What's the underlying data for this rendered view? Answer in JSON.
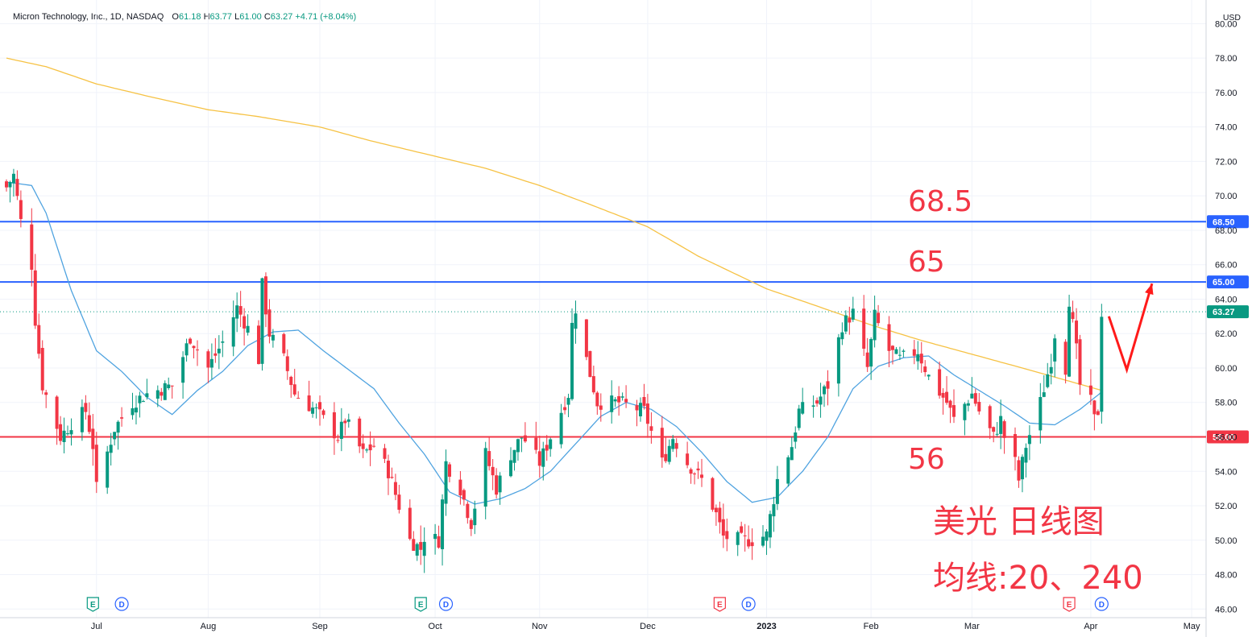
{
  "header": {
    "symbol": "Micron Technology, Inc., 1D, NASDAQ",
    "o_label": "O",
    "o_value": "61.18",
    "h_label": "H",
    "h_value": "63.77",
    "l_label": "L",
    "l_value": "61.00",
    "c_label": "C",
    "c_value": "63.27",
    "change": "+4.71 (+8.04%)"
  },
  "currency": "USD",
  "annotations": {
    "level_high": "68.5",
    "level_mid": "65",
    "level_low": "56",
    "title": "美光 日线图",
    "subtitle": "均线:20、240"
  },
  "colors": {
    "up": "#089981",
    "down": "#f23645",
    "ma20": "#4fa3e0",
    "ma240": "#f6c244",
    "level_blue": "#2962ff",
    "level_red": "#f23645",
    "annotation": "#f23645"
  },
  "chart_data": {
    "type": "candlestick",
    "ylim": [
      45.5,
      81.0
    ],
    "y_ticks": [
      46,
      48,
      50,
      52,
      54,
      56,
      58,
      60,
      62,
      64,
      66,
      68,
      70,
      72,
      74,
      76,
      78,
      80
    ],
    "y_tick_labels": [
      "46.00",
      "48.00",
      "50.00",
      "52.00",
      "54.00",
      "56.00",
      "58.00",
      "60.00",
      "62.00",
      "64.00",
      "66.00",
      "68.00",
      "70.00",
      "72.00",
      "74.00",
      "76.00",
      "78.00",
      "80.00"
    ],
    "x_tick_labels": [
      "Jul",
      "Aug",
      "Sep",
      "Oct",
      "Nov",
      "Dec",
      "2023",
      "Feb",
      "Mar",
      "Apr",
      "May"
    ],
    "x_range": [
      "2022-06-06",
      "2023-05-05"
    ],
    "last_price": "63.27",
    "horizontal_lines": [
      {
        "value": 68.5,
        "label": "68.50",
        "color": "#2962ff"
      },
      {
        "value": 65.0,
        "label": "65.00",
        "color": "#2962ff"
      },
      {
        "value": 56.0,
        "label": "56.00",
        "color": "#f23645"
      }
    ],
    "ma20_anchors": [
      [
        "2022-06-06",
        70.8
      ],
      [
        "2022-06-13",
        70.6
      ],
      [
        "2022-06-17",
        69.0
      ],
      [
        "2022-06-24",
        64.5
      ],
      [
        "2022-07-01",
        61.0
      ],
      [
        "2022-07-08",
        59.8
      ],
      [
        "2022-07-15",
        58.3
      ],
      [
        "2022-07-22",
        57.3
      ],
      [
        "2022-07-29",
        58.7
      ],
      [
        "2022-08-05",
        59.8
      ],
      [
        "2022-08-12",
        61.3
      ],
      [
        "2022-08-19",
        62.1
      ],
      [
        "2022-08-26",
        62.2
      ],
      [
        "2022-09-02",
        61.0
      ],
      [
        "2022-09-09",
        59.9
      ],
      [
        "2022-09-16",
        58.8
      ],
      [
        "2022-09-23",
        56.8
      ],
      [
        "2022-09-30",
        55.0
      ],
      [
        "2022-10-07",
        52.8
      ],
      [
        "2022-10-14",
        52.1
      ],
      [
        "2022-10-21",
        52.4
      ],
      [
        "2022-10-28",
        53.0
      ],
      [
        "2022-11-04",
        54.0
      ],
      [
        "2022-11-11",
        55.6
      ],
      [
        "2022-11-18",
        57.2
      ],
      [
        "2022-11-25",
        58.0
      ],
      [
        "2022-12-02",
        57.6
      ],
      [
        "2022-12-09",
        56.6
      ],
      [
        "2022-12-16",
        55.1
      ],
      [
        "2022-12-23",
        53.4
      ],
      [
        "2022-12-30",
        52.2
      ],
      [
        "2023-01-06",
        52.5
      ],
      [
        "2023-01-13",
        54.0
      ],
      [
        "2023-01-20",
        56.0
      ],
      [
        "2023-01-27",
        58.8
      ],
      [
        "2023-02-03",
        60.1
      ],
      [
        "2023-02-10",
        60.6
      ],
      [
        "2023-02-17",
        60.7
      ],
      [
        "2023-02-24",
        59.6
      ],
      [
        "2023-03-03",
        58.7
      ],
      [
        "2023-03-10",
        57.8
      ],
      [
        "2023-03-17",
        56.8
      ],
      [
        "2023-03-24",
        56.7
      ],
      [
        "2023-03-31",
        57.6
      ],
      [
        "2023-04-06",
        58.6
      ]
    ],
    "ma240_anchors": [
      [
        "2022-06-06",
        78.0
      ],
      [
        "2022-06-17",
        77.5
      ],
      [
        "2022-07-01",
        76.5
      ],
      [
        "2022-07-15",
        75.8
      ],
      [
        "2022-08-01",
        75.0
      ],
      [
        "2022-08-15",
        74.6
      ],
      [
        "2022-09-01",
        74.0
      ],
      [
        "2022-09-15",
        73.2
      ],
      [
        "2022-10-03",
        72.3
      ],
      [
        "2022-10-17",
        71.6
      ],
      [
        "2022-11-01",
        70.6
      ],
      [
        "2022-11-15",
        69.5
      ],
      [
        "2022-12-01",
        68.2
      ],
      [
        "2022-12-15",
        66.5
      ],
      [
        "2023-01-03",
        64.6
      ],
      [
        "2023-01-17",
        63.6
      ],
      [
        "2023-02-01",
        62.5
      ],
      [
        "2023-02-15",
        61.6
      ],
      [
        "2023-03-01",
        60.8
      ],
      [
        "2023-03-15",
        60.0
      ],
      [
        "2023-04-01",
        59.0
      ],
      [
        "2023-04-06",
        58.7
      ]
    ],
    "close_anchors": [
      [
        "2022-06-06",
        70.5
      ],
      [
        "2022-06-08",
        71.2
      ],
      [
        "2022-06-10",
        68.5
      ],
      [
        "2022-06-13",
        66.0
      ],
      [
        "2022-06-14",
        62.8
      ],
      [
        "2022-06-16",
        59.0
      ],
      [
        "2022-06-21",
        56.0
      ],
      [
        "2022-06-24",
        56.8
      ],
      [
        "2022-06-28",
        57.5
      ],
      [
        "2022-06-30",
        55.5
      ],
      [
        "2022-07-01",
        53.0
      ],
      [
        "2022-07-06",
        56.5
      ],
      [
        "2022-07-11",
        58.0
      ],
      [
        "2022-07-15",
        58.5
      ],
      [
        "2022-07-22",
        59.0
      ],
      [
        "2022-07-27",
        61.8
      ],
      [
        "2022-08-01",
        60.0
      ],
      [
        "2022-08-05",
        61.5
      ],
      [
        "2022-08-09",
        63.5
      ],
      [
        "2022-08-12",
        62.3
      ],
      [
        "2022-08-15",
        60.5
      ],
      [
        "2022-08-16",
        64.8
      ],
      [
        "2022-08-18",
        62.0
      ],
      [
        "2022-08-22",
        60.5
      ],
      [
        "2022-08-25",
        58.5
      ],
      [
        "2022-08-31",
        57.5
      ],
      [
        "2022-09-06",
        56.0
      ],
      [
        "2022-09-08",
        57.0
      ],
      [
        "2022-09-13",
        55.0
      ],
      [
        "2022-09-16",
        55.5
      ],
      [
        "2022-09-20",
        54.0
      ],
      [
        "2022-09-23",
        52.0
      ],
      [
        "2022-09-26",
        50.0
      ],
      [
        "2022-09-29",
        49.5
      ],
      [
        "2022-09-30",
        50.2
      ],
      [
        "2022-10-04",
        50.0
      ],
      [
        "2022-10-06",
        54.5
      ],
      [
        "2022-10-10",
        53.0
      ],
      [
        "2022-10-13",
        51.0
      ],
      [
        "2022-10-17",
        55.0
      ],
      [
        "2022-10-20",
        53.0
      ],
      [
        "2022-10-24",
        55.0
      ],
      [
        "2022-10-27",
        56.0
      ],
      [
        "2022-10-28",
        55.8
      ],
      [
        "2022-11-01",
        54.5
      ],
      [
        "2022-11-04",
        56.0
      ],
      [
        "2022-11-09",
        58.5
      ],
      [
        "2022-11-10",
        62.5
      ],
      [
        "2022-11-11",
        63.5
      ],
      [
        "2022-11-14",
        60.5
      ],
      [
        "2022-11-17",
        58.0
      ],
      [
        "2022-11-23",
        58.0
      ],
      [
        "2022-11-30",
        57.5
      ],
      [
        "2022-12-05",
        54.5
      ],
      [
        "2022-12-08",
        56.0
      ],
      [
        "2022-12-12",
        54.5
      ],
      [
        "2022-12-16",
        53.5
      ],
      [
        "2022-12-20",
        51.5
      ],
      [
        "2022-12-22",
        50.2
      ],
      [
        "2022-12-27",
        50.0
      ],
      [
        "2022-12-30",
        50.0
      ],
      [
        "2023-01-03",
        50.3
      ],
      [
        "2023-01-06",
        53.5
      ],
      [
        "2023-01-10",
        55.5
      ],
      [
        "2023-01-12",
        57.5
      ],
      [
        "2023-01-17",
        58.0
      ],
      [
        "2023-01-20",
        59.0
      ],
      [
        "2023-01-24",
        62.5
      ],
      [
        "2023-01-27",
        63.2
      ],
      [
        "2023-01-31",
        60.0
      ],
      [
        "2023-02-02",
        63.0
      ],
      [
        "2023-02-06",
        61.0
      ],
      [
        "2023-02-09",
        60.5
      ],
      [
        "2023-02-14",
        61.0
      ],
      [
        "2023-02-17",
        59.5
      ],
      [
        "2023-02-22",
        58.0
      ],
      [
        "2023-02-24",
        57.0
      ],
      [
        "2023-03-01",
        58.5
      ],
      [
        "2023-03-03",
        57.5
      ],
      [
        "2023-03-07",
        56.0
      ],
      [
        "2023-03-09",
        57.0
      ],
      [
        "2023-03-10",
        56.0
      ],
      [
        "2023-03-13",
        54.5
      ],
      [
        "2023-03-14",
        53.5
      ],
      [
        "2023-03-16",
        55.5
      ],
      [
        "2023-03-20",
        58.0
      ],
      [
        "2023-03-23",
        60.5
      ],
      [
        "2023-03-24",
        62.0
      ],
      [
        "2023-03-27",
        60.0
      ],
      [
        "2023-03-28",
        64.0
      ],
      [
        "2023-03-30",
        61.0
      ],
      [
        "2023-03-31",
        59.0
      ],
      [
        "2023-04-03",
        58.0
      ],
      [
        "2023-04-04",
        57.0
      ],
      [
        "2023-04-05",
        57.5
      ],
      [
        "2023-04-06",
        63.27
      ]
    ],
    "events": [
      {
        "type": "E",
        "date": "2022-06-30",
        "kind": "earnings",
        "color": "#089981"
      },
      {
        "type": "D",
        "date": "2022-07-08",
        "kind": "dividend",
        "color": "#2962ff"
      },
      {
        "type": "E",
        "date": "2022-09-29",
        "kind": "earnings",
        "color": "#089981"
      },
      {
        "type": "D",
        "date": "2022-10-06",
        "kind": "dividend",
        "color": "#2962ff"
      },
      {
        "type": "E",
        "date": "2022-12-21",
        "kind": "earnings",
        "color": "#f23645"
      },
      {
        "type": "D",
        "date": "2022-12-29",
        "kind": "dividend",
        "color": "#2962ff"
      },
      {
        "type": "E",
        "date": "2023-03-28",
        "kind": "earnings",
        "color": "#f23645"
      },
      {
        "type": "D",
        "date": "2023-04-06",
        "kind": "dividend",
        "color": "#2962ff"
      }
    ],
    "projection": [
      [
        "2023-04-08",
        63.0
      ],
      [
        "2023-04-13",
        59.9
      ],
      [
        "2023-04-20",
        64.9
      ]
    ]
  }
}
